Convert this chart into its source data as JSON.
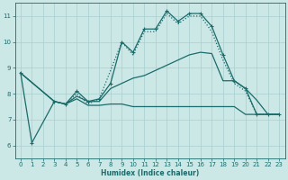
{
  "xlabel": "Humidex (Indice chaleur)",
  "bg_color": "#cce8e6",
  "grid_color": "#a8cece",
  "line_color": "#1a6b6b",
  "xlim": [
    -0.5,
    23.5
  ],
  "ylim": [
    5.5,
    11.5
  ],
  "yticks": [
    6,
    7,
    8,
    9,
    10,
    11
  ],
  "xticks": [
    0,
    1,
    2,
    3,
    4,
    5,
    6,
    7,
    8,
    9,
    10,
    11,
    12,
    13,
    14,
    15,
    16,
    17,
    18,
    19,
    20,
    21,
    22,
    23
  ],
  "series": [
    {
      "x": [
        0,
        1,
        3,
        4,
        5,
        6,
        7,
        8,
        9,
        10,
        11,
        12,
        13,
        14,
        15,
        16,
        17,
        18,
        19,
        20,
        21,
        22,
        23
      ],
      "y": [
        8.8,
        6.1,
        7.7,
        7.6,
        8.1,
        7.7,
        7.8,
        8.4,
        10.0,
        9.6,
        10.5,
        10.5,
        11.2,
        10.8,
        11.1,
        11.1,
        10.6,
        9.5,
        8.5,
        8.2,
        7.2,
        7.2,
        7.2
      ],
      "style": "-",
      "marker": "+",
      "markersize": 3.5,
      "linewidth": 0.9
    },
    {
      "x": [
        0,
        3,
        4,
        5,
        6,
        7,
        9,
        10,
        11,
        12,
        13,
        14,
        15,
        16,
        17,
        18,
        19,
        20,
        21,
        22,
        23
      ],
      "y": [
        8.8,
        7.7,
        7.6,
        8.0,
        7.6,
        7.8,
        10.0,
        9.5,
        10.4,
        10.4,
        11.1,
        10.7,
        11.0,
        11.0,
        10.4,
        9.3,
        8.4,
        8.1,
        7.2,
        7.2,
        7.2
      ],
      "style": ":",
      "marker": null,
      "markersize": 0,
      "linewidth": 0.9
    },
    {
      "x": [
        0,
        3,
        4,
        5,
        6,
        7,
        8,
        9,
        10,
        11,
        12,
        13,
        14,
        15,
        16,
        17,
        18,
        19,
        20,
        21,
        22,
        23
      ],
      "y": [
        8.8,
        7.7,
        7.6,
        7.9,
        7.7,
        7.7,
        8.2,
        8.4,
        8.6,
        8.7,
        8.9,
        9.1,
        9.3,
        9.5,
        9.6,
        9.55,
        8.5,
        8.5,
        8.2,
        7.75,
        7.2,
        7.2
      ],
      "style": "-",
      "marker": null,
      "markersize": 0,
      "linewidth": 0.9
    },
    {
      "x": [
        0,
        3,
        4,
        5,
        6,
        7,
        8,
        9,
        10,
        11,
        12,
        13,
        14,
        15,
        16,
        17,
        18,
        19,
        20,
        21,
        22,
        23
      ],
      "y": [
        8.8,
        7.7,
        7.6,
        7.8,
        7.55,
        7.55,
        7.6,
        7.6,
        7.5,
        7.5,
        7.5,
        7.5,
        7.5,
        7.5,
        7.5,
        7.5,
        7.5,
        7.5,
        7.2,
        7.2,
        7.2,
        7.2
      ],
      "style": "-",
      "marker": null,
      "markersize": 0,
      "linewidth": 0.9
    }
  ]
}
